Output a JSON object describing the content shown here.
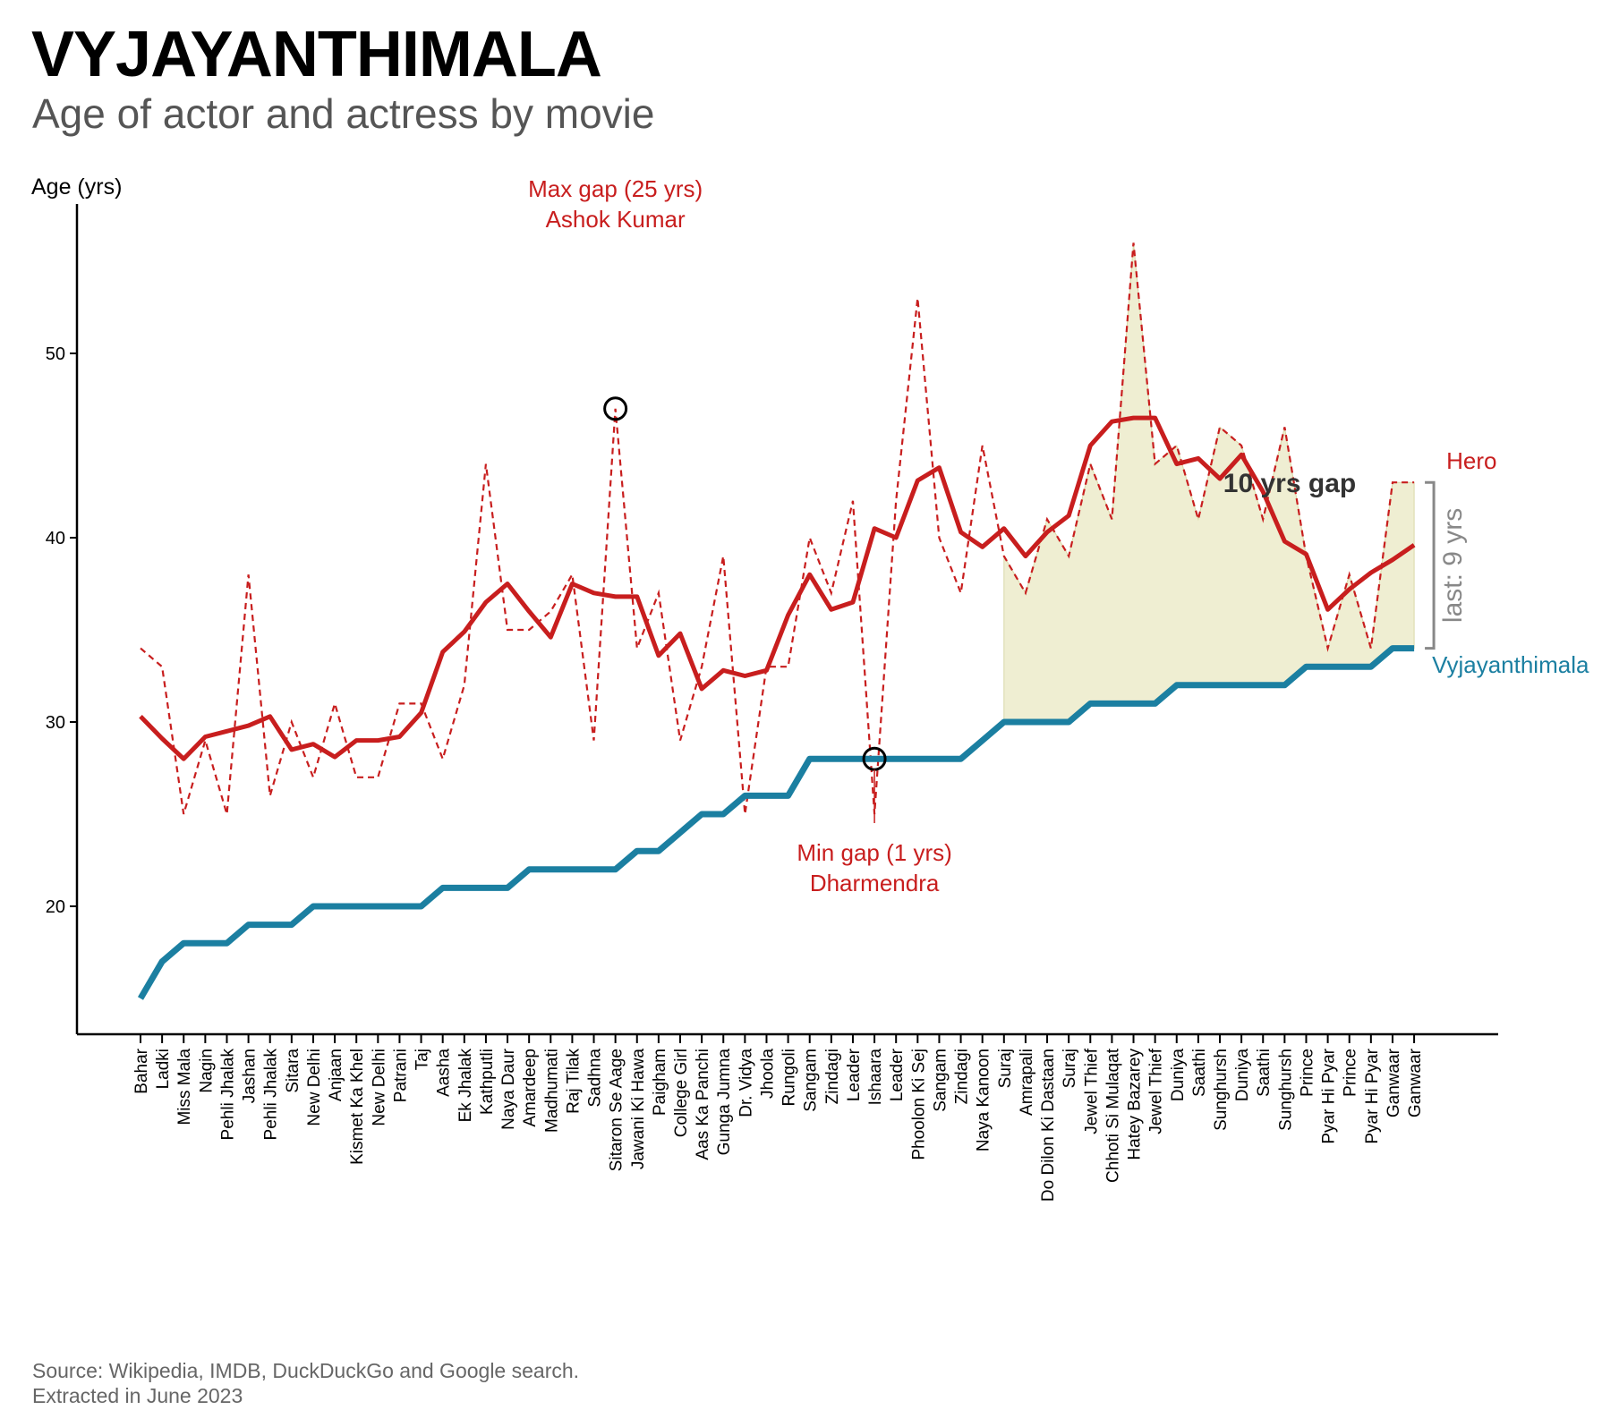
{
  "title": "VYJAYANTHIMALA",
  "subtitle": "Age of actor and actress by movie",
  "source": "Source: Wikipedia, IMDB, DuckDuckGo and Google search.\nExtracted in June 2023",
  "colors": {
    "hero": "#c81e1e",
    "heroine": "#1b7fa1",
    "gap_fill": "#efeed2",
    "muted": "#888888"
  },
  "chart_data": {
    "type": "line",
    "ylabel": "Age (yrs)",
    "yticks": [
      20,
      30,
      40,
      50
    ],
    "ylim": [
      13.5,
      58.5
    ],
    "grid": false,
    "categories": [
      "Bahar",
      "Ladki",
      "Miss Mala",
      "Nagin",
      "Pehli Jhalak",
      "Jashan",
      "Pehli Jhalak",
      "Sitara",
      "New Delhi",
      "Anjaan",
      "Kismet Ka Khel",
      "New Delhi",
      "Patrani",
      "Taj",
      "Aasha",
      "Ek Jhalak",
      "Kathputli",
      "Naya Daur",
      "Amardeep",
      "Madhumati",
      "Raj Tilak",
      "Sadhna",
      "Sitaron Se Aage",
      "Jawani Ki Hawa",
      "Paigham",
      "College Girl",
      "Aas Ka Panchi",
      "Gunga Jumna",
      "Dr. Vidya",
      "Jhoola",
      "Rungoli",
      "Sangam",
      "Zindagi",
      "Leader",
      "Ishaara",
      "Leader",
      "Phoolon Ki Sej",
      "Sangam",
      "Zindagi",
      "Naya Kanoon",
      "Suraj",
      "Amrapali",
      "Do Dilon Ki Dastaan",
      "Suraj",
      "Jewel Thief",
      "Chhoti Si Mulaqat",
      "Hatey Bazarey",
      "Jewel Thief",
      "Duniya",
      "Saathi",
      "Sunghursh",
      "Duniya",
      "Saathi",
      "Sunghursh",
      "Prince",
      "Pyar Hi Pyar",
      "Prince",
      "Pyar Hi Pyar",
      "Ganwaar",
      "Ganwaar"
    ],
    "series": [
      {
        "name": "Hero",
        "style": "dashed",
        "values": [
          34,
          33,
          25,
          29,
          25,
          38,
          26,
          30,
          27,
          31,
          27,
          27,
          31,
          31,
          28,
          32,
          44,
          35,
          35,
          36,
          38,
          29,
          47,
          34,
          37,
          29,
          33,
          39,
          25,
          33,
          33,
          40,
          37,
          42,
          25,
          42,
          53,
          40,
          37,
          45,
          39,
          37,
          41,
          39,
          44,
          41,
          56,
          44,
          45,
          41,
          46,
          45,
          41,
          46,
          39,
          34,
          38,
          34,
          43,
          43
        ]
      },
      {
        "name": "Hero",
        "style": "smoothed",
        "values": [
          30.3,
          29.1,
          28.0,
          29.2,
          29.5,
          29.8,
          30.3,
          28.5,
          28.8,
          28.1,
          29.0,
          29.0,
          29.2,
          30.5,
          33.8,
          34.9,
          36.5,
          37.5,
          36.0,
          34.6,
          37.5,
          37.0,
          36.8,
          36.8,
          33.6,
          34.8,
          31.8,
          32.8,
          32.5,
          32.8,
          35.8,
          38.0,
          36.1,
          36.5,
          40.5,
          40.0,
          43.1,
          43.8,
          40.3,
          39.5,
          40.5,
          39.0,
          40.3,
          41.2,
          45.0,
          46.3,
          46.5,
          46.5,
          44.0,
          44.3,
          43.2,
          44.5,
          42.5,
          39.8,
          39.1,
          36.1,
          37.2,
          38.1,
          38.8,
          39.6
        ]
      },
      {
        "name": "Vyjayanthimala",
        "style": "solid",
        "values": [
          15,
          17,
          18,
          18,
          18,
          19,
          19,
          19,
          20,
          20,
          20,
          20,
          20,
          20,
          21,
          21,
          21,
          21,
          22,
          22,
          22,
          22,
          22,
          23,
          23,
          24,
          25,
          25,
          26,
          26,
          26,
          28,
          28,
          28,
          28,
          28,
          28,
          28,
          28,
          29,
          30,
          30,
          30,
          30,
          31,
          31,
          31,
          31,
          32,
          32,
          32,
          32,
          32,
          32,
          33,
          33,
          33,
          33,
          34,
          34
        ]
      }
    ],
    "annotations": {
      "max_gap": {
        "line1": "Max gap (25 yrs)",
        "line2": "Ashok Kumar"
      },
      "min_gap": {
        "line1": "Min gap (1 yrs)",
        "line2": "Dharmendra"
      },
      "recent_gap": "10 yrs gap",
      "last_gap": "last: 9 yrs",
      "hero_label": "Hero",
      "heroine_label": "Vyjayanthimala"
    }
  }
}
